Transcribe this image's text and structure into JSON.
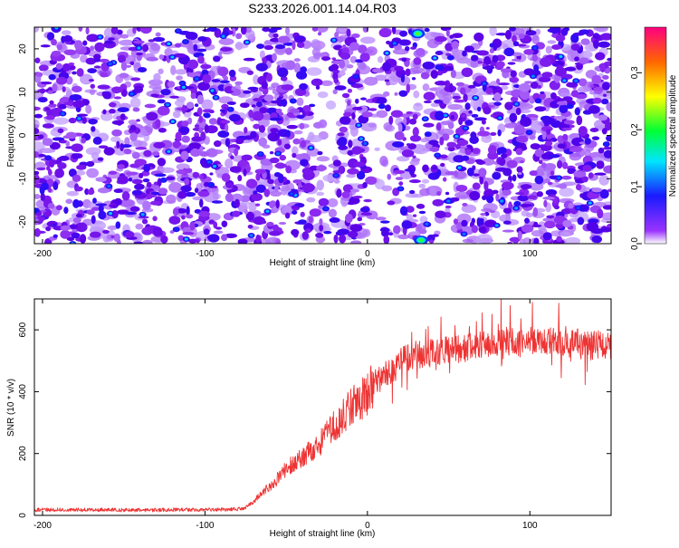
{
  "title": "S233.2026.001.14.04.R03",
  "chart_data": [
    {
      "type": "heatmap",
      "xlabel": "Height of straight line (km)",
      "ylabel": "Frequency (Hz)",
      "xlim": [
        -205,
        150
      ],
      "ylim": [
        -25,
        25
      ],
      "xticks": [
        -200,
        -100,
        0,
        100
      ],
      "yticks": [
        -20,
        -10,
        0,
        10,
        20
      ],
      "colorbar": {
        "label": "Normalized spectral amplitude",
        "range": [
          0,
          0.38
        ],
        "ticks": [
          "0.0",
          "0.1",
          "0.2",
          "0.3"
        ],
        "tick_values": [
          0,
          0.1,
          0.2,
          0.3
        ],
        "colormap": [
          "#ffffff",
          "#8000ff",
          "#0000ff",
          "#00ffff",
          "#00ff00",
          "#ffff00",
          "#ff8000",
          "#ff0000",
          "#ff0080"
        ]
      },
      "description_values": {
        "background_level": 0.03,
        "typical_blob_level": 0.07,
        "peak_level": 0.25,
        "peak_locations": [
          {
            "x": 31,
            "y": 23.5,
            "value": 0.25
          },
          {
            "x": 33,
            "y": -24.2,
            "value": 0.24
          }
        ]
      }
    },
    {
      "type": "line",
      "xlabel": "Height of straight line (km)",
      "ylabel": "SNR (10 * v/v)",
      "xlim": [
        -205,
        150
      ],
      "ylim": [
        0,
        700
      ],
      "xticks": [
        -200,
        -100,
        0,
        100
      ],
      "yticks": [
        0,
        200,
        400,
        600
      ],
      "series": [
        {
          "color": "#ee3333",
          "x": [
            -205,
            -180,
            -160,
            -140,
            -120,
            -100,
            -90,
            -80,
            -75,
            -70,
            -65,
            -60,
            -55,
            -50,
            -45,
            -40,
            -35,
            -30,
            -25,
            -20,
            -15,
            -10,
            -5,
            0,
            5,
            10,
            15,
            20,
            25,
            30,
            35,
            40,
            45,
            50,
            55,
            60,
            65,
            70,
            75,
            80,
            85,
            90,
            95,
            100,
            105,
            110,
            115,
            120,
            125,
            130,
            135,
            140,
            145,
            150
          ],
          "y": [
            18,
            18,
            18,
            17,
            18,
            19,
            19,
            20,
            25,
            45,
            75,
            95,
            120,
            150,
            170,
            190,
            210,
            230,
            260,
            290,
            320,
            350,
            370,
            395,
            430,
            450,
            470,
            495,
            510,
            520,
            520,
            525,
            530,
            535,
            538,
            540,
            545,
            550,
            555,
            560,
            565,
            560,
            555,
            565,
            570,
            565,
            560,
            560,
            555,
            560,
            550,
            555,
            550,
            560
          ]
        }
      ]
    }
  ]
}
